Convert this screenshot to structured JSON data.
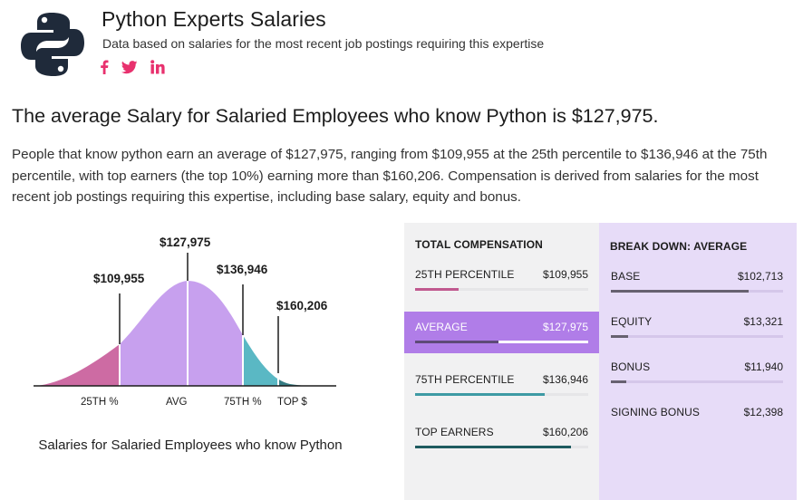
{
  "header": {
    "title": "Python Experts Salaries",
    "subtitle": "Data based on salaries for the most recent job postings requiring this expertise",
    "social": [
      {
        "name": "facebook",
        "icon": "facebook-icon"
      },
      {
        "name": "twitter",
        "icon": "twitter-icon"
      },
      {
        "name": "linkedin",
        "icon": "linkedin-icon"
      }
    ],
    "logo_icon": "python-logo-icon"
  },
  "headline": "The average Salary for Salaried Employees who know Python is $127,975.",
  "paragraph": "People that know python earn an average of $127,975, ranging from $109,955 at the 25th percentile to $136,946 at the 75th percentile, with top earners (the top 10%) earning more than $160,206. Compensation is derived from salaries for the most recent job postings requiring this expertise, including base salary, equity and bonus.",
  "distribution": {
    "markers": [
      {
        "value": "$109,955",
        "axis_label": "25TH %"
      },
      {
        "value": "$127,975",
        "axis_label": "AVG"
      },
      {
        "value": "$136,946",
        "axis_label": "75TH %"
      },
      {
        "value": "$160,206",
        "axis_label": "TOP $"
      }
    ],
    "caption": "Salaries for Salaried Employees who know Python",
    "colors": {
      "low": "#cd6ba3",
      "mid": "#c7a0ee",
      "high": "#5ab8c4",
      "top": "#357c83",
      "line": "#1c1c1c"
    }
  },
  "total_compensation": {
    "heading": "TOTAL COMPENSATION",
    "rows": [
      {
        "label": "25TH PERCENTILE",
        "value": "$109,955",
        "fill": 0.25,
        "color": "#c0598f",
        "highlighted": false
      },
      {
        "label": "AVERAGE",
        "value": "$127,975",
        "fill": 0.48,
        "color": "#5e4a78",
        "highlighted": true
      },
      {
        "label": "75TH PERCENTILE",
        "value": "$136,946",
        "fill": 0.75,
        "color": "#3e9aa4",
        "highlighted": false
      },
      {
        "label": "TOP EARNERS",
        "value": "$160,206",
        "fill": 0.9,
        "color": "#1e5b60",
        "highlighted": false
      }
    ]
  },
  "breakdown": {
    "heading": "BREAK DOWN: AVERAGE",
    "rows": [
      {
        "label": "BASE",
        "value": "$102,713",
        "fill": 0.8
      },
      {
        "label": "EQUITY",
        "value": "$13,321",
        "fill": 0.1
      },
      {
        "label": "BONUS",
        "value": "$11,940",
        "fill": 0.09
      },
      {
        "label": "SIGNING BONUS",
        "value": "$12,398",
        "fill": 0
      }
    ]
  }
}
